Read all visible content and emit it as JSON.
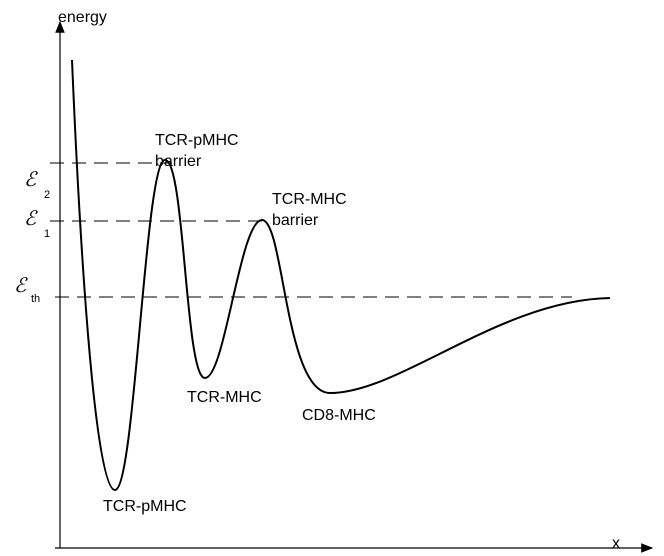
{
  "axes": {
    "y_label": "energy",
    "x_label": "x"
  },
  "levels": [
    {
      "symbol": "ℰ",
      "subscript": "2"
    },
    {
      "symbol": "ℰ",
      "subscript": "1"
    },
    {
      "symbol": "ℰ",
      "subscript": "th"
    }
  ],
  "labels": {
    "barrier_1": [
      "TCR-pMHC",
      "barrier"
    ],
    "barrier_2": [
      "TCR-MHC",
      "barrier"
    ],
    "well_1": "TCR-pMHC",
    "well_2": "TCR-MHC",
    "well_3": "CD8-MHC"
  }
}
